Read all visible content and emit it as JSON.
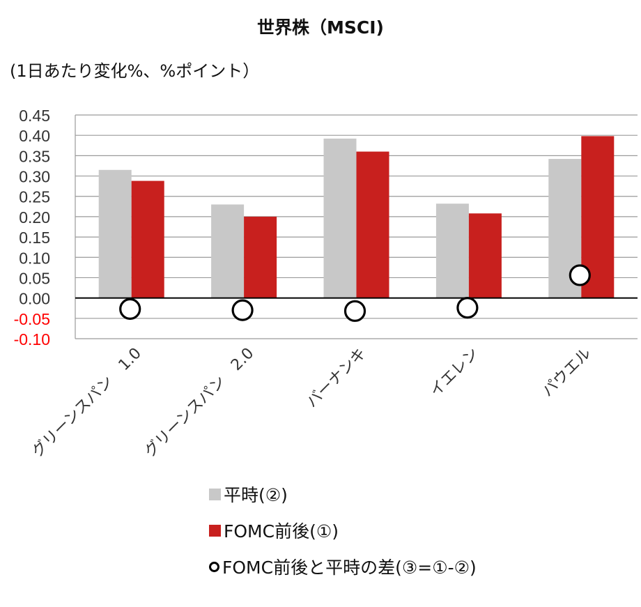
{
  "chart_data": {
    "type": "bar",
    "title": "世界株（MSCI)",
    "subtitle": "(1日あたり変化%、%ポイント）",
    "categories": [
      "グリーンスパン　1.0",
      "グリーンスパン　2.0",
      "バーナンキ",
      "イエレン",
      "パウエル"
    ],
    "series": [
      {
        "name": "平時(②)",
        "type": "bar",
        "color": "#c8c8c8",
        "values": [
          0.315,
          0.23,
          0.392,
          0.232,
          0.342
        ]
      },
      {
        "name": "FOMC前後(①)",
        "type": "bar",
        "color": "#c8201e",
        "values": [
          0.288,
          0.2,
          0.36,
          0.208,
          0.398
        ]
      },
      {
        "name": "FOMC前後と平時の差(③=①-②)",
        "type": "scatter",
        "color": "#000000",
        "values": [
          -0.027,
          -0.03,
          -0.032,
          -0.024,
          0.056
        ]
      }
    ],
    "ylim": [
      -0.1,
      0.45
    ],
    "yticks": [
      "0.45",
      "0.40",
      "0.35",
      "0.30",
      "0.25",
      "0.20",
      "0.15",
      "0.10",
      "0.05",
      "0.00",
      "-0.05",
      "-0.10"
    ],
    "negative_tick_color": "#ff0000",
    "grid": true,
    "legend_position": "bottom"
  }
}
